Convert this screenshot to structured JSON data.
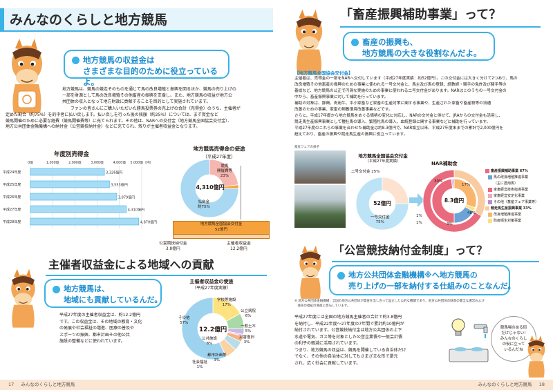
{
  "left": {
    "title": "みんなのくらしと地方競馬",
    "bubble1": [
      "地方競馬の収益金は",
      "さまざまな目的のために役立っているよ。"
    ],
    "intro": [
      "地方競馬は、競馬の競走そのものを通じて馬の改良増殖と振興を図るほか、競馬の売り上げの",
      "一部を財源として馬の改良増殖その他畜産の振興を支援し、また、地方競馬の収益が地方公",
      "共団体の収入となって地方財政に貢献することを目的として実施されています。",
      "ファンの皆さんにご購入いただいた勝馬投票券の売上げの合計（売得金）のうち、主催者が",
      "定めた割合（約75%）を的中者に払い戻します。払い戻しを行った後の残額（約25%）については、まず賞金など",
      "競馬開催のために必要な経費（競馬開催費等）に充てられます。その他は、NARへの交付金（地方競馬全国協会交付金）、",
      "地方公共団体金融機構への納付金（公営競技納付金）などに充てられ、残りが主催者収益金となります。"
    ],
    "bar_chart": {
      "title": "年度別売得金",
      "axis_ticks": [
        "0億",
        "1,000億",
        "2,000億",
        "3,000億",
        "4,000億",
        "5,000億（円）"
      ],
      "categories": [
        "平成24年度",
        "平成25年度",
        "平成26年度",
        "平成27年度",
        "平成28年度"
      ],
      "values": [
        3326,
        3553,
        3879,
        4310,
        4870
      ],
      "value_labels": [
        "3,326億円",
        "3,553億円",
        "3,879億円",
        "4,310億円",
        "4,870億円"
      ],
      "max": 5000
    },
    "donut1": {
      "title": [
        "地方競馬売得金の使途",
        "（平成27年度）"
      ],
      "center": "4,310億円",
      "outer": [
        {
          "label": "払戻金",
          "pct": "約75%",
          "value": 75,
          "color": "#a8d8f2"
        },
        {
          "label": "競馬開催費等",
          "pct": "23%",
          "value": 23,
          "color": "#f6b7b1"
        },
        {
          "label": "",
          "pct": "",
          "value": 2,
          "color": "#f6a23c"
        }
      ],
      "label_pay": [
        "払戻金",
        "約75%"
      ],
      "label_cost": [
        "競馬",
        "開催費等",
        "23%"
      ],
      "breakdown_box": [
        "地方競馬全国協会交付金",
        "52億円"
      ],
      "note_a": [
        "公営競技納付金",
        "3.8億円"
      ],
      "note_b": [
        "主催者収益金",
        "12.2億円"
      ]
    },
    "section2_title": "主催者収益金による地域への貢献",
    "bubble2": [
      "地方競馬は、",
      "地域にも貢献しているんだ。"
    ],
    "section2_text": [
      "平成27年度の主催者収益金は、約12.2億円",
      "です。この収益金は、その地域の教育・文化",
      "の発展や社会福祉の増進、医療の普及や",
      "スポーツの振興、都市計画その他公共",
      "施設の整備などに使われています。"
    ],
    "donut2": {
      "title": [
        "主催者収益金の使途",
        "（平成27年度実績）"
      ],
      "center": "12.2億円",
      "segments": [
        {
          "label": "学校等施設",
          "pct": "17%",
          "value": 17,
          "color": "#fde27f"
        },
        {
          "label": "公共施設",
          "pct": "8%",
          "value": 8,
          "color": "#aad9a8"
        },
        {
          "label": "都市計画等",
          "pct": "3%",
          "value": 3,
          "color": "#c7b8e3"
        },
        {
          "label": "社会福祉",
          "pct": "1%",
          "value": 1,
          "color": "#f3c1d9"
        },
        {
          "label": "災害復旧",
          "pct": "3%",
          "value": 3,
          "color": "#f4b183"
        },
        {
          "label": "一般土木",
          "pct": "5%",
          "value": 5,
          "color": "#b7dde8"
        },
        {
          "label": "公立病院",
          "pct": "6%",
          "value": 6,
          "color": "#f9d3a5"
        },
        {
          "label": "その他",
          "pct": "57%",
          "value": 57,
          "color": "#9dd3ef"
        }
      ]
    },
    "footer": {
      "page": "17",
      "label": "みんなのくらしと地方競馬"
    }
  },
  "right": {
    "title": "「畜産振興補助事業」って？",
    "bubble1": [
      "畜産の振興も、",
      "地方競馬の大きな役割なんだよ。"
    ],
    "sub_heading": "【地方競馬全国協会交付金】",
    "para": [
      "主催者は、売得金の一部をNARへ交付しています（平成27年度実績：約52億円）。この交付金には大きく分けて2つあり、馬の",
      "改良増殖その他畜産の振興のための事業に使われる一号交付金と、馬主及び馬の登録、調教師・騎手の免許及び騎手等の",
      "養成など、地方競馬の公正で円滑な実施のための事業に使われる二号交付金があります。NARはこのうちの一号交付金の",
      "中から、畜産振興事業に対して補助を行っています。",
      "補助の対象は、豚鶏、肉用牛、中小家畜など家畜の生産対策に関する事業や、生産された家畜や畜産物等の流通",
      "改善のための事業、家畜の飼養環境改善事業などです。",
      "さらに、平成17年度から地方競馬をめぐる情勢の変化に対応し、NARの交付金と併せて、JRAからの交付金も活用し、",
      "競走馬生産振興事業として種牡馬の導入、繁殖牝馬の導入、血統登録に関する事業などに補助を行っています。",
      "平成27年度のこれらの事業を合わせた補助金は約8.3億円で、NAR設立以来、平成27年度末までの累計で2,000億円を",
      "超えており、畜産の振興や競走馬生産の振興に役立っています。"
    ],
    "photo_caption": "畜産フェアの様子",
    "donut_a": {
      "title": [
        "地方競馬全国協会交付金",
        "（平成27年度実績）"
      ],
      "center": "52億円",
      "segments": [
        {
          "label": "一号交付金",
          "pct": "75%",
          "value": 75,
          "color": "#bde3f6"
        },
        {
          "label": "二号交付金",
          "pct": "25%",
          "value": 25,
          "color": "#fde2cf"
        }
      ],
      "label_b": "二号交付金 25%",
      "label_a": [
        "一号交付金",
        "75%"
      ]
    },
    "donut_b": {
      "title": "NAR補助金",
      "center": "8.3億円",
      "segments": [
        {
          "label": "畜産振興補助事業",
          "pct": "67%",
          "value": 67,
          "color": "#e96a7d"
        },
        {
          "label": "競走馬生産振興事業",
          "pct": "33%",
          "value": 33,
          "color": "#f8cba1"
        }
      ],
      "inner": [
        {
          "label": "馬の改良増殖推進事業（主に農用馬）",
          "value": 17,
          "color": "#6ba3d6"
        },
        {
          "label": "家畜経営技術指導事業",
          "value": 48,
          "color": "#e96a7d"
        },
        {
          "label": "家畜経営安定化事業",
          "value": 1,
          "color": "#f3a7c3"
        },
        {
          "label": "その他（畜産フェア事業等）",
          "value": 1,
          "color": "#b48fd0"
        },
        {
          "label": "改良増殖推進事業",
          "value": 30,
          "color": "#f9b56b"
        },
        {
          "label": "防疫衛生対策事業",
          "value": 3,
          "color": "#fde27f"
        }
      ],
      "pct_labels": [
        "17%",
        "48%",
        "1%",
        "1%",
        "30%",
        "3%"
      ],
      "left_pcts": [
        "1%",
        "1%"
      ]
    },
    "legend": [
      {
        "label": "畜産振興補助事業 67%",
        "color": "#e96a7d",
        "bold": true
      },
      {
        "label": "馬の改良増殖推進事業",
        "color": "#6ba3d6",
        "bold": false
      },
      {
        "label": "（主に農用馬）",
        "color": "",
        "bold": false
      },
      {
        "label": "家畜経営技術指導事業",
        "color": "#e96a7d",
        "bold": false
      },
      {
        "label": "家畜経営安定化事業",
        "color": "#f3a7c3",
        "bold": false
      },
      {
        "label": "その他（畜産フェア事業等）",
        "color": "#b48fd0",
        "bold": false
      },
      {
        "label": "競走馬生産振興事業 33%",
        "color": "#f8cba1",
        "bold": true
      },
      {
        "label": "改良増殖推進事業",
        "color": "#f9b56b",
        "bold": false
      },
      {
        "label": "防疫衛生対策事業",
        "color": "#fde27f",
        "bold": false
      }
    ],
    "section2_title": "「公営競技納付金制度」って？",
    "bubble2": [
      "地方公共団体金融機構※へ地方競馬の",
      "売り上げの一部を納付する仕組みのことなんだ。"
    ],
    "note": [
      "※ 地方公共団体金融機構：全国の地方公共団体が資金を出し合って設立した公的な機関であり、地方公共団体の財政の健全な運営および",
      "　住民の福祉の増進に寄与しています。"
    ],
    "para2": [
      "平成27年度には全国の地方競馬主催者の合計で約3.8億円",
      "を納付し、平成22年度〜27年度の7年間で累計約10億円が",
      "納付されています。公営競技納付金は地方公共団体の上下",
      "水道や電気、ガス等を対象とした公営企業債や一般会計債",
      "の利子の軽減に活用されています。",
      "つまり、地方競馬の収益は、競馬を開催している自治体だけ",
      "でなく、その他の自治体に対してもさまざまな形で還元",
      "され、広く社会に貢献しています。"
    ],
    "horse_bubble": [
      "競馬場のある街",
      "だけじゃない!",
      "みんなのくらし",
      "の役に立って",
      "いるんだね"
    ],
    "footer": {
      "page": "18",
      "label": "みんなのくらしと地方競馬"
    }
  }
}
